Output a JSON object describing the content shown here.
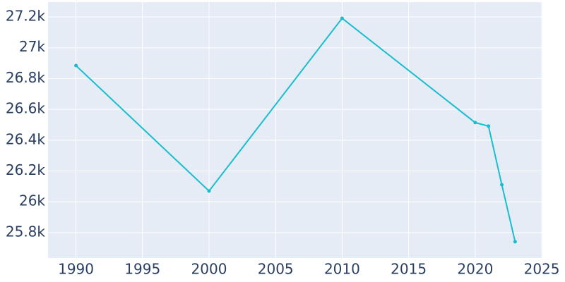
{
  "chart_data": {
    "type": "line",
    "x": [
      1990,
      2000,
      2010,
      2020,
      2021,
      2022,
      2023
    ],
    "series": [
      {
        "color": "#17becf",
        "values": [
          26884,
          26070,
          27191,
          26514,
          26491,
          26111,
          25741
        ]
      }
    ],
    "xlim": [
      1987.9,
      2025.05
    ],
    "xticks": [
      1990,
      1995,
      2000,
      2005,
      2010,
      2015,
      2020,
      2025
    ],
    "ylim": [
      25635,
      27296
    ],
    "yticks": [
      {
        "value": 25800,
        "label": "25.8k"
      },
      {
        "value": 26000,
        "label": "26k"
      },
      {
        "value": 26200,
        "label": "26.2k"
      },
      {
        "value": 26400,
        "label": "26.4k"
      },
      {
        "value": 26600,
        "label": "26.6k"
      },
      {
        "value": 26800,
        "label": "26.8k"
      },
      {
        "value": 27000,
        "label": "27k"
      },
      {
        "value": 27200,
        "label": "27.2k"
      }
    ],
    "grid": true
  }
}
